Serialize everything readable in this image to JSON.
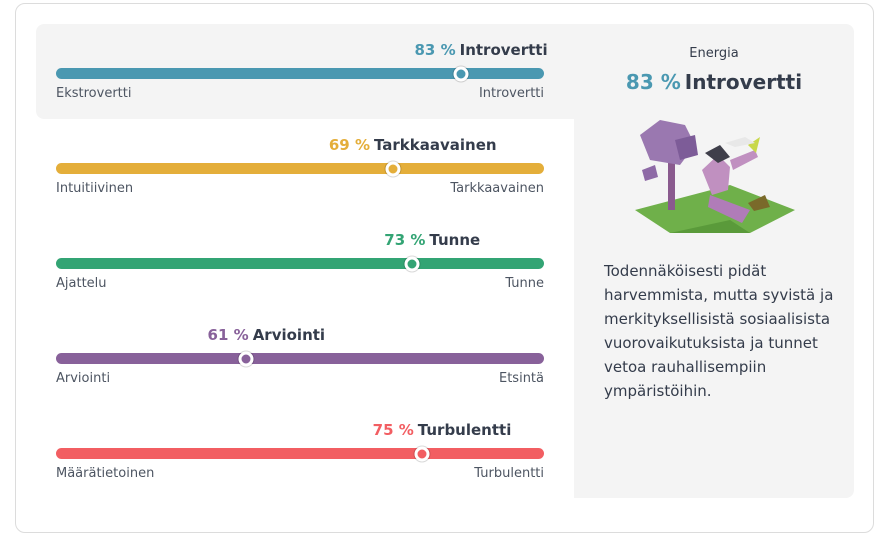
{
  "traits": [
    {
      "value": 83,
      "value_label": "83 %",
      "trait": "Introvertti",
      "left": "Ekstrovertti",
      "right": "Introvertti",
      "side": "right",
      "color": "#4a98b1"
    },
    {
      "value": 69,
      "value_label": "69 %",
      "trait": "Tarkkaavainen",
      "left": "Intuitiivinen",
      "right": "Tarkkaavainen",
      "side": "right",
      "color": "#e4ae3a"
    },
    {
      "value": 73,
      "value_label": "73 %",
      "trait": "Tunne",
      "left": "Ajattelu",
      "right": "Tunne",
      "side": "right",
      "color": "#33a474"
    },
    {
      "value": 61,
      "value_label": "61 %",
      "trait": "Arviointi",
      "left": "Arviointi",
      "right": "Etsintä",
      "side": "left",
      "color": "#88619a"
    },
    {
      "value": 75,
      "value_label": "75 %",
      "trait": "Turbulentti",
      "left": "Määrätietoinen",
      "right": "Turbulentti",
      "side": "right",
      "color": "#f25e62"
    }
  ],
  "panel": {
    "heading": "Energia",
    "value_label": "83 %",
    "trait": "Introvertti",
    "color": "#4a98b1",
    "text": "Todennäköisesti pidät harvemmista, mutta syvistä ja merkityksellisistä sosiaalisista vuorovaikutuksista ja tunnet vetoa rauhallisempiin ympäristöihin."
  }
}
